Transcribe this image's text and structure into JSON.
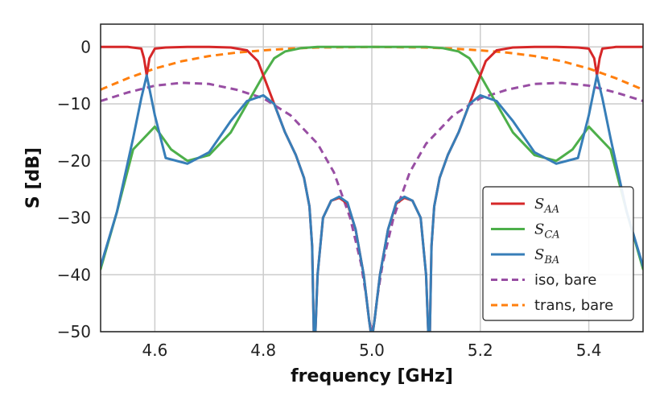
{
  "chart_data": {
    "type": "line",
    "title": "",
    "xlabel": "frequency [GHz]",
    "ylabel": "S [dB]",
    "xlim": [
      4.5,
      5.5
    ],
    "ylim": [
      -50,
      4
    ],
    "grid": true,
    "x_ticks": [
      4.6,
      4.8,
      5.0,
      5.2,
      5.4
    ],
    "x_tick_labels": [
      "4.6",
      "4.8",
      "5.0",
      "5.2",
      "5.4"
    ],
    "y_ticks": [
      0,
      -10,
      -20,
      -30,
      -40,
      -50
    ],
    "y_tick_labels": [
      "0",
      "−10",
      "−20",
      "−30",
      "−40",
      "−50"
    ],
    "legend_position": "lower-right",
    "series": [
      {
        "name": "S_AA",
        "label_main": "S",
        "label_sub": "AA",
        "color": "#d62728",
        "dash": "solid",
        "x": [
          4.5,
          4.55,
          4.575,
          4.58,
          4.585,
          4.59,
          4.6,
          4.62,
          4.66,
          4.7,
          4.74,
          4.77,
          4.79,
          4.8,
          4.82,
          4.84,
          4.86,
          4.875,
          4.885,
          4.89,
          4.893,
          4.896,
          4.9,
          4.91,
          4.925,
          4.94,
          4.955,
          4.97,
          4.985,
          4.995,
          4.998,
          5.0,
          5.002,
          5.005,
          5.015,
          5.03,
          5.045,
          5.06,
          5.075,
          5.09,
          5.1,
          5.104,
          5.107,
          5.11,
          5.115,
          5.125,
          5.14,
          5.16,
          5.18,
          5.2,
          5.21,
          5.23,
          5.26,
          5.3,
          5.34,
          5.38,
          5.4,
          5.41,
          5.415,
          5.42,
          5.425,
          5.45,
          5.5
        ],
        "y": [
          0,
          0,
          -0.3,
          -2,
          -5,
          -2,
          -0.3,
          -0.1,
          0,
          0,
          -0.1,
          -0.6,
          -2.5,
          -5,
          -10,
          -15,
          -19,
          -23,
          -28,
          -35,
          -50,
          -50,
          -40,
          -30,
          -27,
          -26.5,
          -27.5,
          -32,
          -40,
          -48,
          -50,
          -50,
          -50,
          -48,
          -40,
          -32,
          -27.5,
          -26.5,
          -27,
          -30,
          -40,
          -50,
          -50,
          -35,
          -28,
          -23,
          -19,
          -15,
          -10,
          -5,
          -2.5,
          -0.6,
          -0.1,
          0,
          0,
          -0.1,
          -0.3,
          -2,
          -5,
          -2,
          -0.3,
          0,
          0
        ]
      },
      {
        "name": "S_CA",
        "label_main": "S",
        "label_sub": "CA",
        "color": "#4daf4a",
        "dash": "solid",
        "x": [
          4.5,
          4.53,
          4.56,
          4.6,
          4.63,
          4.66,
          4.7,
          4.74,
          4.77,
          4.8,
          4.82,
          4.84,
          4.87,
          4.9,
          4.95,
          5.0,
          5.05,
          5.1,
          5.13,
          5.16,
          5.18,
          5.2,
          5.23,
          5.26,
          5.3,
          5.34,
          5.37,
          5.4,
          5.44,
          5.47,
          5.5
        ],
        "y": [
          -39,
          -29,
          -18,
          -14,
          -18,
          -20,
          -19,
          -15,
          -10,
          -5,
          -2,
          -0.8,
          -0.2,
          0,
          0,
          0,
          0,
          0,
          -0.2,
          -0.8,
          -2,
          -5,
          -10,
          -15,
          -19,
          -20,
          -18,
          -14,
          -18,
          -29,
          -39
        ]
      },
      {
        "name": "S_BA",
        "label_main": "S",
        "label_sub": "BA",
        "color": "#377eb8",
        "dash": "solid",
        "x": [
          4.5,
          4.53,
          4.56,
          4.575,
          4.585,
          4.6,
          4.62,
          4.66,
          4.7,
          4.74,
          4.77,
          4.8,
          4.82,
          4.84,
          4.86,
          4.875,
          4.885,
          4.89,
          4.893,
          4.896,
          4.9,
          4.91,
          4.925,
          4.94,
          4.955,
          4.97,
          4.985,
          4.995,
          4.998,
          5.0,
          5.002,
          5.005,
          5.015,
          5.03,
          5.045,
          5.06,
          5.075,
          5.09,
          5.1,
          5.104,
          5.107,
          5.11,
          5.115,
          5.125,
          5.14,
          5.16,
          5.18,
          5.2,
          5.23,
          5.26,
          5.3,
          5.34,
          5.38,
          5.4,
          5.415,
          5.425,
          5.44,
          5.47,
          5.5
        ],
        "y": [
          -38.5,
          -29,
          -16,
          -9,
          -5,
          -12,
          -19.5,
          -20.5,
          -18.5,
          -13,
          -9.5,
          -8.5,
          -10,
          -15,
          -19,
          -23,
          -28,
          -35,
          -50,
          -50,
          -40,
          -30,
          -27,
          -26.3,
          -27.3,
          -32,
          -40,
          -48,
          -50,
          -50,
          -50,
          -48,
          -40,
          -32,
          -27.3,
          -26.3,
          -27,
          -30,
          -40,
          -50,
          -50,
          -35,
          -28,
          -23,
          -19,
          -15,
          -10,
          -8.5,
          -9.5,
          -13,
          -18.5,
          -20.5,
          -19.5,
          -12,
          -5,
          -9,
          -16,
          -29,
          -38.5
        ]
      },
      {
        "name": "iso, bare",
        "label_main": "iso, bare",
        "label_sub": "",
        "color": "#984ea3",
        "dash": "dashed",
        "x": [
          4.5,
          4.55,
          4.6,
          4.65,
          4.7,
          4.75,
          4.8,
          4.85,
          4.9,
          4.93,
          4.96,
          4.98,
          4.99,
          4.995,
          5.0,
          5.005,
          5.01,
          5.02,
          5.04,
          5.07,
          5.1,
          5.15,
          5.2,
          5.25,
          5.3,
          5.35,
          5.4,
          5.45,
          5.5
        ],
        "y": [
          -9.5,
          -8,
          -6.8,
          -6.3,
          -6.5,
          -7.5,
          -9,
          -12,
          -17,
          -22,
          -30,
          -38,
          -44,
          -48,
          -50,
          -48,
          -44,
          -38,
          -30,
          -22,
          -17,
          -12,
          -9,
          -7.5,
          -6.5,
          -6.3,
          -6.8,
          -8,
          -9.5
        ]
      },
      {
        "name": "trans, bare",
        "label_main": "trans, bare",
        "label_sub": "",
        "color": "#ff7f0e",
        "dash": "dashed",
        "x": [
          4.5,
          4.55,
          4.6,
          4.65,
          4.7,
          4.75,
          4.8,
          4.85,
          4.9,
          5.0,
          5.1,
          5.15,
          5.2,
          5.25,
          5.3,
          5.35,
          5.4,
          5.45,
          5.5
        ],
        "y": [
          -7.5,
          -5.5,
          -3.8,
          -2.5,
          -1.6,
          -1,
          -0.6,
          -0.3,
          -0.1,
          0,
          -0.1,
          -0.3,
          -0.6,
          -1,
          -1.6,
          -2.5,
          -3.8,
          -5.5,
          -7.5
        ]
      }
    ]
  }
}
